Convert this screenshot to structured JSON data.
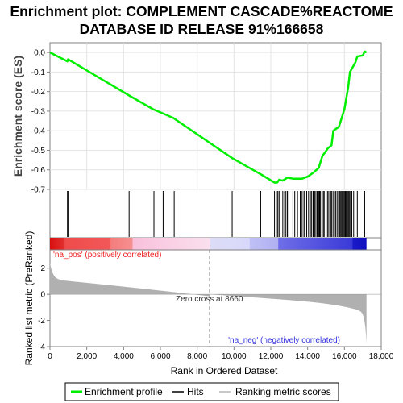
{
  "chart_data": {
    "type": "line",
    "title_line1": "Enrichment plot: COMPLEMENT CASCADE%REACTOME",
    "title_line2": "DATABASE ID RELEASE 91%166658",
    "xlabel": "Rank in Ordered Dataset",
    "ylabel_top": "Enrichment score (ES)",
    "ylabel_bottom": "Ranked list metric (PreRanked)",
    "x_range": [
      0,
      18000
    ],
    "x_ticks": [
      0,
      2000,
      4000,
      6000,
      8000,
      10000,
      12000,
      14000,
      16000,
      18000
    ],
    "x_tick_labels": [
      "0",
      "2,000",
      "4,000",
      "6,000",
      "8,000",
      "10,000",
      "12,000",
      "14,000",
      "16,000",
      "18,000"
    ],
    "es_ylim": [
      -0.7,
      0.05
    ],
    "es_ticks": [
      0.0,
      -0.1,
      -0.2,
      -0.3,
      -0.4,
      -0.5,
      -0.6,
      -0.7
    ],
    "es_tick_labels": [
      "0.0",
      "-0.1",
      "-0.2",
      "-0.3",
      "-0.4",
      "-0.5",
      "-0.6",
      "-0.7"
    ],
    "metric_ylim": [
      -4,
      3.4
    ],
    "metric_ticks": [
      2,
      0,
      -2,
      -4
    ],
    "metric_tick_labels": [
      "2",
      "0",
      "-2",
      "-4"
    ],
    "n_genes": 17200,
    "zero_cross": 8660,
    "zero_cross_label": "Zero cross at 8660",
    "pos_label": "'na_pos' (positively correlated)",
    "neg_label": "'na_neg' (negatively correlated)",
    "es_curve": [
      [
        0,
        0.0
      ],
      [
        950,
        -0.045
      ],
      [
        980,
        -0.035
      ],
      [
        4300,
        -0.22
      ],
      [
        5600,
        -0.29
      ],
      [
        6100,
        -0.31
      ],
      [
        6700,
        -0.335
      ],
      [
        9900,
        -0.54
      ],
      [
        11500,
        -0.625
      ],
      [
        12200,
        -0.665
      ],
      [
        12350,
        -0.665
      ],
      [
        12450,
        -0.65
      ],
      [
        12650,
        -0.655
      ],
      [
        12900,
        -0.64
      ],
      [
        13200,
        -0.645
      ],
      [
        13700,
        -0.645
      ],
      [
        14000,
        -0.635
      ],
      [
        14300,
        -0.615
      ],
      [
        14600,
        -0.59
      ],
      [
        14800,
        -0.53
      ],
      [
        15100,
        -0.49
      ],
      [
        15300,
        -0.475
      ],
      [
        15400,
        -0.4
      ],
      [
        15700,
        -0.38
      ],
      [
        16000,
        -0.29
      ],
      [
        16200,
        -0.18
      ],
      [
        16300,
        -0.1
      ],
      [
        16600,
        -0.05
      ],
      [
        16700,
        -0.02
      ],
      [
        17000,
        -0.015
      ],
      [
        17100,
        0.005
      ],
      [
        17200,
        0.0
      ]
    ],
    "hits": [
      950,
      980,
      4300,
      5650,
      6150,
      6750,
      9900,
      11450,
      12200,
      12300,
      12380,
      12450,
      12650,
      12750,
      12820,
      12900,
      12980,
      13200,
      13300,
      13450,
      13600,
      13700,
      13800,
      13850,
      13950,
      14050,
      14150,
      14220,
      14300,
      14380,
      14450,
      14520,
      14600,
      14650,
      14700,
      14780,
      14850,
      14900,
      15000,
      15080,
      15150,
      15250,
      15300,
      15380,
      15450,
      15520,
      15600,
      15680,
      15750,
      15800,
      15850,
      15900,
      15950,
      16000,
      16050,
      16100,
      16150,
      16200,
      16250,
      16300,
      16400,
      16500,
      16700,
      17100
    ],
    "legend": [
      {
        "label": "Enrichment profile",
        "color": "#00ee00"
      },
      {
        "label": "Hits",
        "color": "#000000"
      },
      {
        "label": "Ranking metric scores",
        "color": "#c0c0c0"
      }
    ],
    "colors": {
      "es_line": "#00ee00",
      "hits": "#000000",
      "metric": "#b0b0b0",
      "pos_text": "#ee2222",
      "neg_text": "#3333dd",
      "zero_text": "#333333"
    }
  }
}
